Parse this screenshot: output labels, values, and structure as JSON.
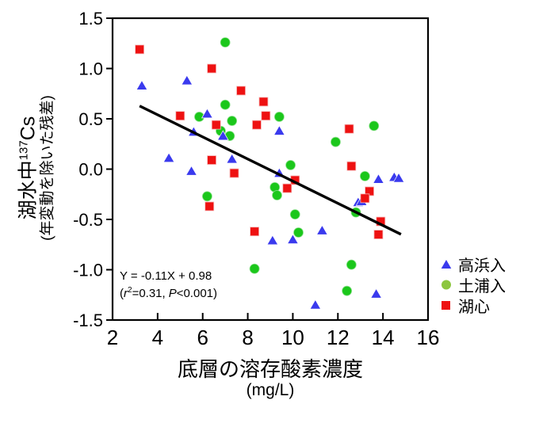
{
  "figure": {
    "y_axis_title": {
      "main_pre": "湖水中",
      "main_sup": "137",
      "main_post": "Cs",
      "sub": "(年変動を除いた残差)"
    },
    "x_axis_title": {
      "main": "底層の溶存酸素濃度",
      "sub": "(mg/L)"
    },
    "annotation": {
      "line1": "Y = -0.11X + 0.98",
      "open": "(",
      "r": "r",
      "sup": "2",
      "mid": "=0.31,",
      "p": "P",
      "end": "<0.001)"
    },
    "legend": {
      "position": "right-bottom-outside",
      "items": [
        {
          "label": "高浜入",
          "marker": "triangle",
          "color": "#3A3AEE"
        },
        {
          "label": "土浦入",
          "marker": "circle",
          "color": "#8CC63F"
        },
        {
          "label": "湖心",
          "marker": "square",
          "color": "#EE1111"
        }
      ]
    }
  },
  "chart_data": {
    "type": "scatter",
    "title": "",
    "xlabel": "底層の溶存酸素濃度 (mg/L)",
    "ylabel": "湖水中137Cs（年変動を除いた残差）",
    "xlim": [
      2,
      16
    ],
    "ylim": [
      -1.5,
      1.5
    ],
    "xticks": [
      2,
      4,
      6,
      8,
      10,
      12,
      14,
      16
    ],
    "yticks": [
      1.5,
      1.0,
      0.5,
      0.0,
      -0.5,
      -1.0,
      -1.5
    ],
    "grid": false,
    "legend_position": "outside-right",
    "series": [
      {
        "name": "高浜入",
        "marker": "triangle",
        "color": "#3A3AEE",
        "points": [
          [
            3.3,
            0.83
          ],
          [
            5.3,
            0.88
          ],
          [
            4.5,
            0.11
          ],
          [
            5.5,
            -0.02
          ],
          [
            5.6,
            0.37
          ],
          [
            6.2,
            0.55
          ],
          [
            6.9,
            0.33
          ],
          [
            7.3,
            0.1
          ],
          [
            9.4,
            0.38
          ],
          [
            9.4,
            -0.04
          ],
          [
            9.1,
            -0.71
          ],
          [
            10.0,
            -0.7
          ],
          [
            11.0,
            -1.35
          ],
          [
            11.3,
            -0.61
          ],
          [
            12.9,
            -0.33
          ],
          [
            13.05,
            -0.32
          ],
          [
            13.7,
            -1.24
          ],
          [
            13.8,
            -0.1
          ],
          [
            14.5,
            -0.08
          ],
          [
            14.7,
            -0.09
          ]
        ]
      },
      {
        "name": "土浦入",
        "marker": "circle",
        "color": "#1BC71B",
        "points": [
          [
            7.0,
            1.26
          ],
          [
            7.0,
            0.64
          ],
          [
            5.85,
            0.52
          ],
          [
            7.3,
            0.48
          ],
          [
            9.4,
            0.52
          ],
          [
            6.8,
            0.38
          ],
          [
            7.2,
            0.33
          ],
          [
            9.9,
            0.04
          ],
          [
            9.2,
            -0.18
          ],
          [
            9.3,
            -0.26
          ],
          [
            6.2,
            -0.27
          ],
          [
            10.1,
            -0.45
          ],
          [
            10.25,
            -0.63
          ],
          [
            8.3,
            -0.99
          ],
          [
            11.9,
            0.27
          ],
          [
            13.6,
            0.43
          ],
          [
            13.2,
            -0.07
          ],
          [
            12.8,
            -0.43
          ],
          [
            12.6,
            -0.95
          ],
          [
            12.4,
            -1.21
          ]
        ]
      },
      {
        "name": "湖心",
        "marker": "square",
        "color": "#EE1111",
        "points": [
          [
            3.2,
            1.19
          ],
          [
            6.4,
            1.0
          ],
          [
            7.7,
            0.78
          ],
          [
            8.7,
            0.67
          ],
          [
            5.0,
            0.53
          ],
          [
            8.8,
            0.53
          ],
          [
            8.4,
            0.44
          ],
          [
            6.6,
            0.44
          ],
          [
            6.4,
            0.09
          ],
          [
            7.4,
            -0.04
          ],
          [
            10.1,
            -0.11
          ],
          [
            9.75,
            -0.19
          ],
          [
            6.3,
            -0.37
          ],
          [
            8.3,
            -0.62
          ],
          [
            12.5,
            0.4
          ],
          [
            12.6,
            0.03
          ],
          [
            13.4,
            -0.22
          ],
          [
            13.2,
            -0.29
          ],
          [
            13.9,
            -0.52
          ],
          [
            13.8,
            -0.65
          ]
        ]
      }
    ],
    "trendline": {
      "equation": "Y = -0.11X + 0.98",
      "slope": -0.11,
      "intercept": 0.98,
      "x_start": 3.2,
      "x_end": 14.8,
      "r2": 0.31,
      "p": "<0.001"
    }
  }
}
